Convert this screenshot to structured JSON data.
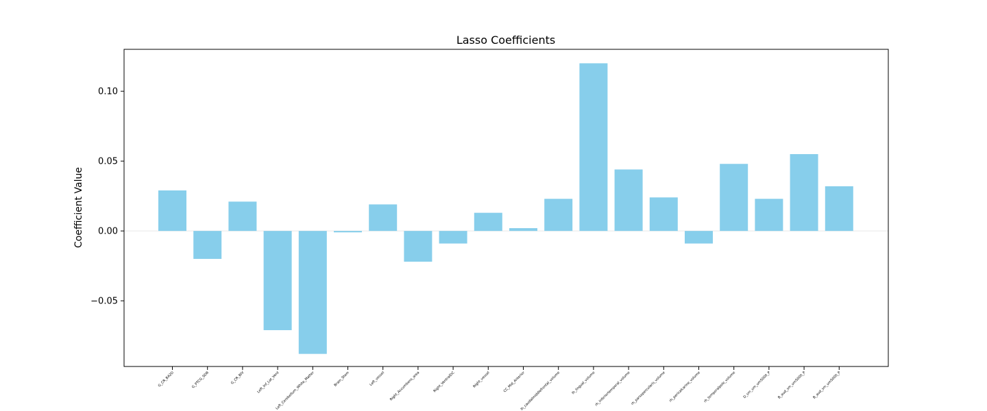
{
  "chart_data": {
    "type": "bar",
    "title": "Lasso Coefficients",
    "xlabel": "",
    "ylabel": "Coefficient Value",
    "ylim": [
      -0.097,
      0.13
    ],
    "yticks": [
      -0.05,
      0.0,
      0.05,
      0.1
    ],
    "ytick_labels": [
      "−0.05",
      "0.00",
      "0.05",
      "0.10"
    ],
    "grid": false,
    "bar_color": "#87CEEB",
    "zero_line_color": "#e6e6e6",
    "categories": [
      "G_CR_BA2D",
      "G_PTCG_SDR",
      "G_CR_BIV",
      "Left_Inf_Lat_Vent",
      "Left_Cerebellum_White_Matter",
      "Brain_Stem",
      "Left_vessel",
      "Right_Accumbens_area",
      "Right_VentralDC",
      "Right_vessel",
      "CC_Mid_Anterior",
      "lh_caudalmiddlefrontal_volume",
      "lh_lingual_volume",
      "rh_inferiortemporal_volume",
      "rh_parsopercularis_volume",
      "rh_pericalcarine_volume",
      "rh_temporalpole_volume",
      "D_sm_um_um5000_P",
      "B_aud_sm_um5000_P",
      "B_aud_sm_um5000_P"
    ],
    "values": [
      0.029,
      -0.02,
      0.021,
      -0.071,
      -0.088,
      -0.001,
      0.019,
      -0.022,
      -0.009,
      0.013,
      0.002,
      0.023,
      0.12,
      0.044,
      0.024,
      -0.009,
      0.048,
      0.023,
      0.055,
      0.032
    ]
  }
}
